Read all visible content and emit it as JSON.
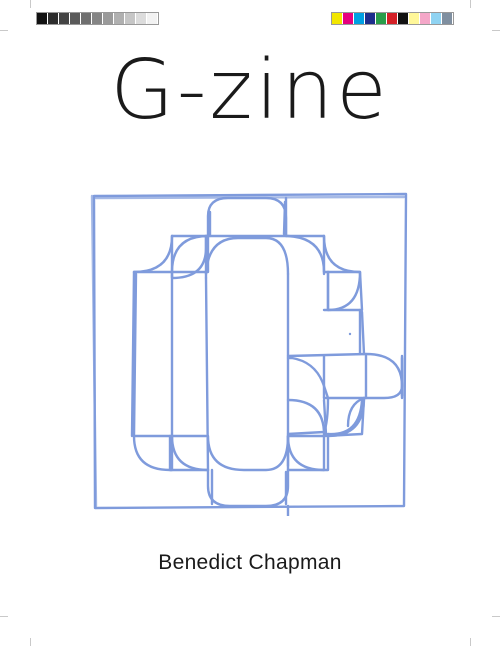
{
  "cover": {
    "title": "G-zine",
    "author": "Benedict Chapman"
  },
  "colors": {
    "sketch": "#7f9bdc",
    "text": "#1a1a1a",
    "gray_patches": [
      "#111111",
      "#2d2d2d",
      "#444444",
      "#5a5a5a",
      "#6f6f6f",
      "#858585",
      "#9a9a9a",
      "#b0b0b0",
      "#c6c6c6",
      "#dcdcdc",
      "#f2f2f2"
    ],
    "color_patches": [
      "#f2e600",
      "#e6007e",
      "#00a0e3",
      "#1d2d8c",
      "#2a9d4a",
      "#d42027",
      "#111111",
      "#fff799",
      "#f4a7c8",
      "#8fd3f2",
      "#7f8fa0"
    ]
  },
  "illustration": {
    "name": "hand-drawn G letterform sketch"
  }
}
